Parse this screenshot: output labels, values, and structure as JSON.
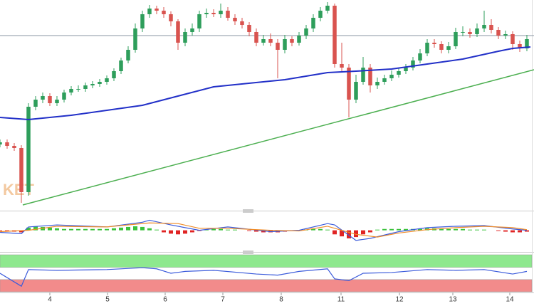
{
  "chart_data": [
    {
      "type": "candlestick",
      "watermark": "KET",
      "xlim": [
        0,
        75
      ],
      "ylim": [
        0,
        295
      ],
      "colors": {
        "up": "#2e9e5b",
        "down": "#d9534f",
        "level": "#8a96a3"
      },
      "level": 245,
      "candles": [
        [
          92,
          99,
          88,
          95
        ],
        [
          95,
          99,
          86,
          90
        ],
        [
          90,
          94,
          83,
          87
        ],
        [
          87,
          91,
          10,
          25
        ],
        [
          25,
          150,
          20,
          145
        ],
        [
          145,
          160,
          140,
          155
        ],
        [
          155,
          165,
          150,
          160
        ],
        [
          160,
          164,
          146,
          150
        ],
        [
          150,
          160,
          146,
          155
        ],
        [
          155,
          169,
          151,
          165
        ],
        [
          165,
          174,
          161,
          170
        ],
        [
          170,
          175,
          166,
          170
        ],
        [
          170,
          179,
          166,
          175
        ],
        [
          175,
          181,
          171,
          177
        ],
        [
          177,
          184,
          173,
          180
        ],
        [
          180,
          189,
          176,
          185
        ],
        [
          185,
          199,
          181,
          195
        ],
        [
          195,
          214,
          191,
          210
        ],
        [
          210,
          230,
          206,
          225
        ],
        [
          225,
          262,
          221,
          255
        ],
        [
          255,
          280,
          250,
          275
        ],
        [
          275,
          288,
          270,
          283
        ],
        [
          283,
          287,
          275,
          280
        ],
        [
          280,
          285,
          270,
          275
        ],
        [
          275,
          279,
          258,
          265
        ],
        [
          265,
          268,
          225,
          235
        ],
        [
          235,
          255,
          230,
          250
        ],
        [
          250,
          262,
          245,
          255
        ],
        [
          255,
          280,
          250,
          275
        ],
        [
          275,
          283,
          270,
          277
        ],
        [
          277,
          282,
          271,
          275
        ],
        [
          275,
          290,
          270,
          280
        ],
        [
          280,
          285,
          266,
          270
        ],
        [
          270,
          275,
          260,
          265
        ],
        [
          265,
          270,
          255,
          260
        ],
        [
          260,
          264,
          244,
          250
        ],
        [
          250,
          255,
          230,
          235
        ],
        [
          235,
          246,
          231,
          240
        ],
        [
          240,
          248,
          230,
          235
        ],
        [
          235,
          240,
          185,
          225
        ],
        [
          225,
          246,
          220,
          240
        ],
        [
          240,
          244,
          230,
          235
        ],
        [
          235,
          250,
          231,
          245
        ],
        [
          245,
          260,
          240,
          255
        ],
        [
          255,
          275,
          250,
          270
        ],
        [
          270,
          285,
          265,
          280
        ],
        [
          280,
          292,
          276,
          287
        ],
        [
          287,
          290,
          200,
          205
        ],
        [
          205,
          235,
          195,
          200
        ],
        [
          200,
          205,
          130,
          155
        ],
        [
          155,
          190,
          150,
          180
        ],
        [
          180,
          215,
          176,
          200
        ],
        [
          200,
          205,
          165,
          175
        ],
        [
          175,
          186,
          170,
          180
        ],
        [
          180,
          190,
          176,
          185
        ],
        [
          185,
          196,
          181,
          190
        ],
        [
          190,
          200,
          186,
          195
        ],
        [
          195,
          205,
          191,
          200
        ],
        [
          200,
          215,
          196,
          210
        ],
        [
          210,
          226,
          206,
          220
        ],
        [
          220,
          240,
          216,
          235
        ],
        [
          235,
          240,
          228,
          233
        ],
        [
          233,
          237,
          220,
          225
        ],
        [
          225,
          236,
          220,
          230
        ],
        [
          230,
          256,
          226,
          250
        ],
        [
          250,
          258,
          244,
          250
        ],
        [
          250,
          255,
          242,
          247
        ],
        [
          247,
          262,
          243,
          255
        ],
        [
          255,
          280,
          250,
          260
        ],
        [
          260,
          268,
          248,
          253
        ],
        [
          253,
          257,
          240,
          245
        ],
        [
          245,
          252,
          240,
          247
        ],
        [
          247,
          251,
          225,
          233
        ],
        [
          233,
          238,
          222,
          227
        ],
        [
          227,
          246,
          223,
          240
        ]
      ],
      "moving_average": {
        "color": "#2230c8",
        "x": [
          0,
          4,
          10,
          20,
          30,
          40,
          46,
          50,
          55,
          60,
          65,
          70,
          72,
          74.5
        ],
        "values": [
          130,
          127,
          133,
          147,
          173,
          183,
          193,
          195,
          198,
          205,
          212,
          223,
          227,
          229
        ]
      },
      "trendline": {
        "color": "#4caf50",
        "x": [
          3.2,
          75
        ],
        "values": [
          7,
          197
        ]
      }
    },
    {
      "type": "macd",
      "xlim": [
        0,
        75
      ],
      "ylim": [
        -30,
        25
      ],
      "colors": {
        "up": "#3cc23c",
        "down": "#e02424"
      },
      "histogram": [
        -1,
        -1,
        -2,
        -3,
        4,
        6,
        5,
        4,
        3,
        2,
        2,
        2,
        2,
        2,
        2,
        2,
        3,
        4,
        5,
        6,
        5,
        3,
        1,
        -3,
        -5,
        -6,
        -5,
        -3,
        -1,
        1,
        2,
        2,
        1,
        1,
        0,
        -1,
        -2,
        -3,
        -3,
        -3,
        -2,
        -1,
        0,
        1,
        2,
        2,
        1,
        -6,
        -9,
        -12,
        -10,
        -6,
        -3,
        1,
        2,
        2,
        2,
        2,
        2,
        2,
        3,
        3,
        2,
        2,
        2,
        2,
        1,
        1,
        1,
        0,
        -1,
        -2,
        -3,
        -3,
        -2
      ],
      "lines": [
        {
          "color": "#3b5bdb",
          "x": [
            0,
            3,
            4,
            8,
            15,
            20,
            21,
            24,
            28,
            32,
            38,
            42,
            46,
            47,
            50,
            52,
            56,
            60,
            64,
            68,
            72,
            74
          ],
          "values": [
            -3,
            -5,
            5,
            8,
            5,
            12,
            15,
            8,
            0,
            5,
            -2,
            0,
            10,
            8,
            -15,
            -12,
            -2,
            4,
            6,
            7,
            2,
            0
          ]
        },
        {
          "color": "#f08c28",
          "x": [
            0,
            4,
            8,
            15,
            21,
            25,
            28,
            32,
            38,
            42,
            46,
            50,
            53,
            56,
            60,
            64,
            68,
            72,
            74
          ],
          "values": [
            -2,
            0,
            6,
            5,
            11,
            10,
            3,
            3,
            0,
            -1,
            6,
            -6,
            -10,
            -4,
            1,
            4,
            6,
            4,
            1
          ]
        }
      ]
    },
    {
      "type": "rsi",
      "xlim": [
        0,
        75
      ],
      "ylim": [
        0,
        100
      ],
      "zones": [
        {
          "from": 66,
          "to": 100,
          "color": "#8ee88e"
        },
        {
          "from": 0,
          "to": 33,
          "color": "#f28b8b"
        }
      ],
      "line": {
        "color": "#3b5bdb",
        "x": [
          0,
          3,
          4,
          8,
          15,
          20,
          22,
          24,
          26,
          30,
          36,
          39,
          42,
          46,
          47,
          49,
          51,
          55,
          60,
          64,
          68,
          72,
          74
        ],
        "values": [
          50,
          15,
          60,
          58,
          60,
          65,
          62,
          50,
          55,
          58,
          48,
          45,
          55,
          62,
          35,
          30,
          50,
          52,
          60,
          58,
          60,
          48,
          55
        ]
      },
      "xticks": [
        {
          "value": 7,
          "label": "4"
        },
        {
          "value": 15.1,
          "label": "5"
        },
        {
          "value": 23.2,
          "label": "6"
        },
        {
          "value": 31.3,
          "label": "7"
        },
        {
          "value": 39.5,
          "label": "8"
        },
        {
          "value": 47.9,
          "label": "11"
        },
        {
          "value": 56.1,
          "label": "12"
        },
        {
          "value": 63.6,
          "label": "13"
        },
        {
          "value": 71.6,
          "label": "14"
        }
      ]
    }
  ]
}
